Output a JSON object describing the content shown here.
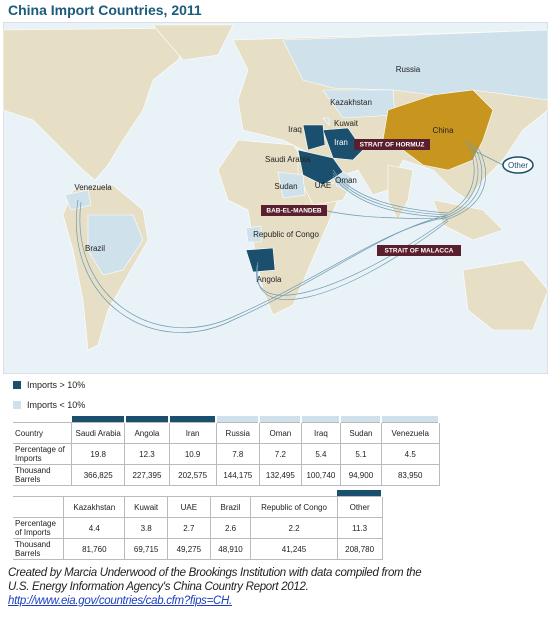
{
  "title": "China Import Countries, 2011",
  "map": {
    "labels": [
      "Russia",
      "Kazakhstan",
      "Kuwait",
      "Iraq",
      "Iran",
      "China",
      "Saudi Arabia",
      "Sudan",
      "UAE",
      "Oman",
      "Venezuela",
      "Brazil",
      "Republic of Congo",
      "Angola",
      "Other"
    ],
    "straits": [
      "STRAIT OF HORMUZ",
      "BAB-EL-MANDEB",
      "STRAIT OF MALACCA"
    ]
  },
  "legend": [
    {
      "label": "Imports > 10%",
      "color": "#1b4f6e"
    },
    {
      "label": "Imports < 10%",
      "color": "#cfe1eb"
    }
  ],
  "tables": [
    {
      "row_labels": [
        "Country",
        "Percentage of Imports",
        "Thousand Barrels"
      ],
      "columns": [
        {
          "country": "Saudi Arabia",
          "percentage": 19.8,
          "barrels": "366,825",
          "color": "#1b4f6e"
        },
        {
          "country": "Angola",
          "percentage": 12.3,
          "barrels": "227,395",
          "color": "#1b4f6e"
        },
        {
          "country": "Iran",
          "percentage": 10.9,
          "barrels": "202,575",
          "color": "#1b4f6e"
        },
        {
          "country": "Russia",
          "percentage": 7.8,
          "barrels": "144,175",
          "color": "#cfe1eb"
        },
        {
          "country": "Oman",
          "percentage": 7.2,
          "barrels": "132,495",
          "color": "#cfe1eb"
        },
        {
          "country": "Iraq",
          "percentage": 5.4,
          "barrels": "100,740",
          "color": "#cfe1eb"
        },
        {
          "country": "Sudan",
          "percentage": 5.1,
          "barrels": "94,900",
          "color": "#cfe1eb"
        },
        {
          "country": "Venezuela",
          "percentage": 4.5,
          "barrels": "83,950",
          "color": "#cfe1eb"
        }
      ]
    },
    {
      "row_labels": [
        "Percentage of Imports",
        "Thousand Barrels"
      ],
      "columns": [
        {
          "country": "Kazakhstan",
          "percentage": 4.4,
          "barrels": "81,760"
        },
        {
          "country": "Kuwait",
          "percentage": 3.8,
          "barrels": "69,715"
        },
        {
          "country": "UAE",
          "percentage": 2.7,
          "barrels": "49,275"
        },
        {
          "country": "Brazil",
          "percentage": 2.6,
          "barrels": "48,910"
        },
        {
          "country": "Republic of Congo",
          "percentage": 2.2,
          "barrels": "41,245"
        },
        {
          "country": "Other",
          "percentage": 11.3,
          "barrels": "208,780",
          "color": "#1b4f6e"
        }
      ]
    }
  ],
  "credit": {
    "text": "Created by Marcia Underwood of the Brookings Institution with data compiled from the U.S. Energy Information Agency's China Country Report 2012.",
    "link": "http://www.eia.gov/countries/cab.cfm?fips=CH."
  }
}
